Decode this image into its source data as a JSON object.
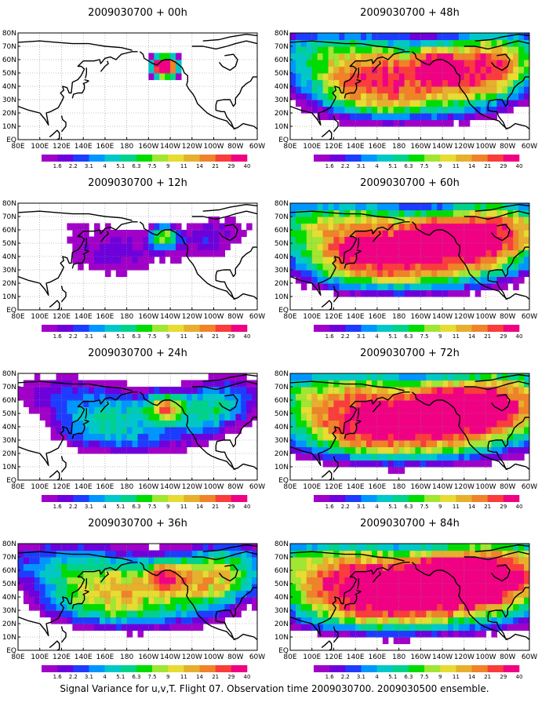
{
  "figure": {
    "caption": "Signal Variance for u,v,T. Flight 07. Observation time 2009030700. 2009030500 ensemble."
  },
  "map": {
    "lat_labels": [
      "80N",
      "70N",
      "60N",
      "50N",
      "40N",
      "30N",
      "20N",
      "10N",
      "EQ"
    ],
    "lon_labels": [
      "80E",
      "100E",
      "120E",
      "140E",
      "160E",
      "180",
      "160W",
      "140W",
      "120W",
      "100W",
      "80W",
      "60W"
    ],
    "coastline_color": "#000000",
    "gridline_style": "dotted"
  },
  "colorbar": {
    "levels": [
      "1.6",
      "2.2",
      "3.1",
      "4",
      "5.1",
      "6.3",
      "7.5",
      "9",
      "11",
      "14",
      "21",
      "29",
      "40"
    ],
    "colors": [
      "#a000c8",
      "#6e00dc",
      "#1e3cff",
      "#0096ff",
      "#00c8c8",
      "#00d28c",
      "#00dc00",
      "#a0e632",
      "#e6dc32",
      "#e6af2d",
      "#f08228",
      "#fa3c3c",
      "#f00082"
    ]
  },
  "panels": [
    {
      "title": "2009030700 + 00h",
      "intensity": 0
    },
    {
      "title": "2009030700 + 12h",
      "intensity": 1
    },
    {
      "title": "2009030700 + 24h",
      "intensity": 2
    },
    {
      "title": "2009030700 + 36h",
      "intensity": 3
    },
    {
      "title": "2009030700 + 48h",
      "intensity": 4
    },
    {
      "title": "2009030700 + 60h",
      "intensity": 5
    },
    {
      "title": "2009030700 + 72h",
      "intensity": 6
    },
    {
      "title": "2009030700 + 84h",
      "intensity": 7
    }
  ]
}
